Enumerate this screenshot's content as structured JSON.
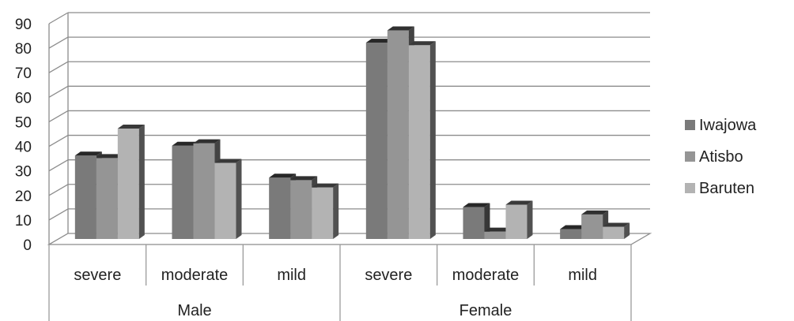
{
  "chart_data": {
    "type": "bar",
    "three_d": true,
    "groups": [
      "Male",
      "Female"
    ],
    "categories": [
      "severe",
      "moderate",
      "mild",
      "severe",
      "moderate",
      "mild"
    ],
    "series": [
      {
        "name": "Iwajowa",
        "color": "#7a7a7a",
        "values": [
          34,
          38,
          25,
          80,
          13,
          4
        ]
      },
      {
        "name": "Atisbo",
        "color": "#959595",
        "values": [
          33,
          39,
          24,
          85,
          3,
          10
        ]
      },
      {
        "name": "Baruten",
        "color": "#b3b3b3",
        "values": [
          45,
          31,
          21,
          79,
          14,
          5
        ]
      }
    ],
    "y_ticks": [
      "0",
      "10",
      "20",
      "30",
      "40",
      "50",
      "60",
      "70",
      "80",
      "90"
    ],
    "ylim": [
      0,
      90
    ],
    "grid": true,
    "legend_position": "right"
  }
}
